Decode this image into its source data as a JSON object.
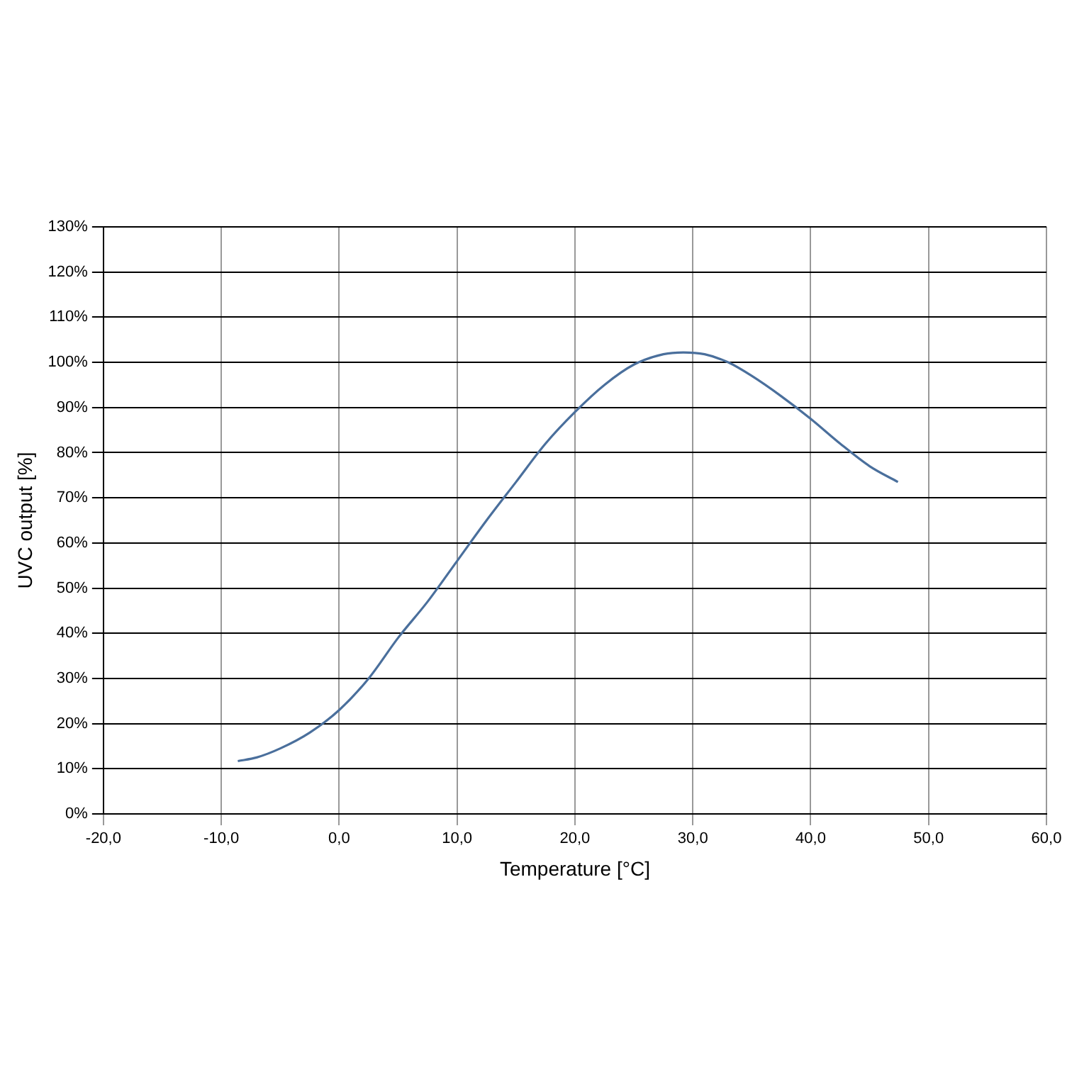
{
  "chart_data": {
    "type": "line",
    "xlabel": "Temperature [°C]",
    "ylabel": "UVC output [%]",
    "x": [
      -8.6,
      -7,
      -5,
      -2.5,
      0,
      2.5,
      5,
      7.5,
      10,
      12.5,
      15,
      17.5,
      20,
      22.5,
      25,
      27.5,
      29.2,
      31,
      33,
      35,
      37.5,
      40,
      42.5,
      45,
      47.4
    ],
    "series": [
      {
        "color": "#4a6f9c",
        "values": [
          11.7,
          12.5,
          14.5,
          18,
          23,
          30,
          39,
          47,
          56,
          65,
          73.5,
          82,
          89,
          95,
          99.5,
          101.8,
          102.2,
          101.8,
          100,
          97,
          92.5,
          87.5,
          82,
          77,
          73.5
        ]
      }
    ],
    "xlim": [
      -20,
      60
    ],
    "xticks": [
      {
        "value": -20,
        "label": "-20,0"
      },
      {
        "value": -10,
        "label": "-10,0"
      },
      {
        "value": 0,
        "label": "0,0"
      },
      {
        "value": 10,
        "label": "10,0"
      },
      {
        "value": 20,
        "label": "20,0"
      },
      {
        "value": 30,
        "label": "30,0"
      },
      {
        "value": 40,
        "label": "40,0"
      },
      {
        "value": 50,
        "label": "50,0"
      },
      {
        "value": 60,
        "label": "60,0"
      }
    ],
    "ylim": [
      0,
      130
    ],
    "yticks": [
      {
        "value": 0,
        "label": "0%"
      },
      {
        "value": 10,
        "label": "10%"
      },
      {
        "value": 20,
        "label": "20%"
      },
      {
        "value": 30,
        "label": "30%"
      },
      {
        "value": 40,
        "label": "40%"
      },
      {
        "value": 50,
        "label": "50%"
      },
      {
        "value": 60,
        "label": "60%"
      },
      {
        "value": 70,
        "label": "70%"
      },
      {
        "value": 80,
        "label": "80%"
      },
      {
        "value": 90,
        "label": "90%"
      },
      {
        "value": 100,
        "label": "100%"
      },
      {
        "value": 110,
        "label": "110%"
      },
      {
        "value": 120,
        "label": "120%"
      },
      {
        "value": 130,
        "label": "130%"
      }
    ],
    "grid": true,
    "marker": "none",
    "line_style": "solid"
  }
}
